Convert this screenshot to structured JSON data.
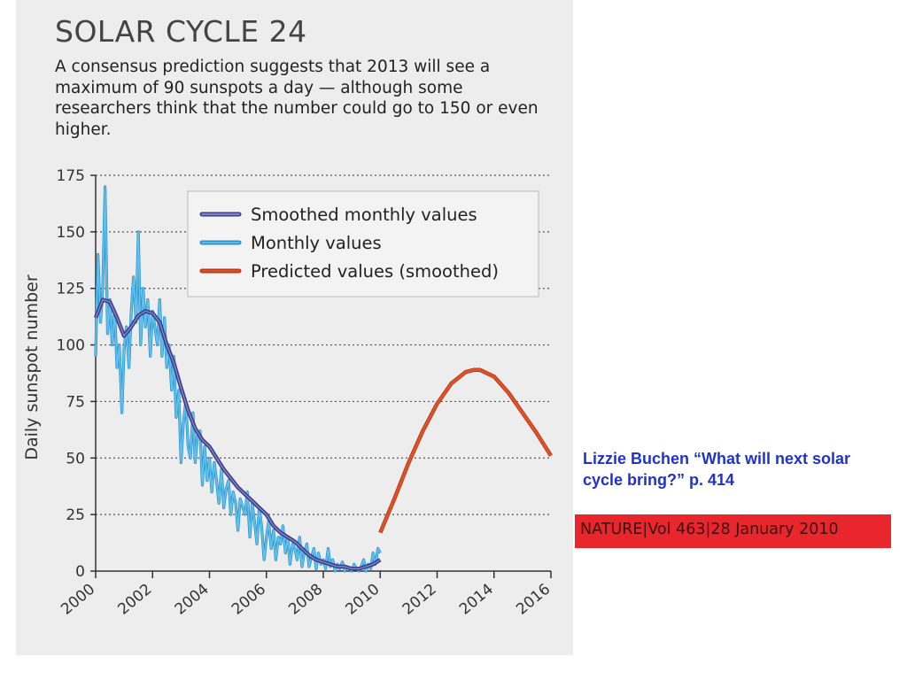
{
  "figure": {
    "title": "SOLAR CYCLE 24",
    "subtitle": "A consensus prediction suggests that 2013 will see a maximum of 90 sunspots a day — although some researchers think that the number could go to 150 or even higher."
  },
  "credit": "Lizzie Buchen “What will next solar cycle bring?” p. 414",
  "citation": "NATURE|Vol 463|28 January 2010",
  "colors": {
    "panel_background": "#ededed",
    "smoothed": "#3c3f8a",
    "monthly": "#5cc1ee",
    "predicted": "#e0522a",
    "credit_text": "#1f33c7",
    "citation_background": "#e8262b"
  },
  "chart_data": {
    "type": "line",
    "ylabel": "Daily sunspot number",
    "xlabel": "",
    "xlim": [
      2000,
      2016
    ],
    "ylim": [
      0,
      175
    ],
    "yticks": [
      0,
      25,
      50,
      75,
      100,
      125,
      150,
      175
    ],
    "xticks": [
      "2000",
      "2002",
      "2004",
      "2006",
      "2008",
      "2010",
      "2012",
      "2014",
      "2016"
    ],
    "grid": "horizontal dotted",
    "legend_position": "top-right",
    "series": [
      {
        "name": "Smoothed monthly values",
        "color": "#3c3f8a",
        "x": [
          2000.0,
          2000.25,
          2000.5,
          2000.75,
          2001.0,
          2001.25,
          2001.5,
          2001.75,
          2002.0,
          2002.25,
          2002.5,
          2002.75,
          2003.0,
          2003.25,
          2003.5,
          2003.75,
          2004.0,
          2004.25,
          2004.5,
          2004.75,
          2005.0,
          2005.25,
          2005.5,
          2005.75,
          2006.0,
          2006.25,
          2006.5,
          2006.75,
          2007.0,
          2007.25,
          2007.5,
          2007.75,
          2008.0,
          2008.25,
          2008.5,
          2008.75,
          2009.0,
          2009.25,
          2009.5,
          2009.75,
          2010.0
        ],
        "y": [
          112,
          120,
          119,
          112,
          104,
          108,
          113,
          115,
          114,
          110,
          100,
          92,
          81,
          71,
          63,
          58,
          55,
          50,
          45,
          41,
          37,
          34,
          31,
          28,
          25,
          20,
          17,
          15,
          13,
          10,
          7,
          5,
          4,
          3,
          2,
          2,
          1,
          1,
          2,
          3,
          5
        ]
      },
      {
        "name": "Monthly values",
        "color": "#5cc1ee",
        "x": [
          2000.0,
          2000.08,
          2000.17,
          2000.25,
          2000.33,
          2000.42,
          2000.5,
          2000.58,
          2000.67,
          2000.75,
          2000.83,
          2000.92,
          2001.0,
          2001.08,
          2001.17,
          2001.25,
          2001.33,
          2001.42,
          2001.5,
          2001.58,
          2001.67,
          2001.75,
          2001.83,
          2001.92,
          2002.0,
          2002.08,
          2002.17,
          2002.25,
          2002.33,
          2002.42,
          2002.5,
          2002.58,
          2002.67,
          2002.75,
          2002.83,
          2002.92,
          2003.0,
          2003.08,
          2003.17,
          2003.25,
          2003.33,
          2003.42,
          2003.5,
          2003.58,
          2003.67,
          2003.75,
          2003.83,
          2003.92,
          2004.0,
          2004.08,
          2004.17,
          2004.25,
          2004.33,
          2004.42,
          2004.5,
          2004.58,
          2004.67,
          2004.75,
          2004.83,
          2004.92,
          2005.0,
          2005.08,
          2005.17,
          2005.25,
          2005.33,
          2005.42,
          2005.5,
          2005.58,
          2005.67,
          2005.75,
          2005.83,
          2005.92,
          2006.0,
          2006.08,
          2006.17,
          2006.25,
          2006.33,
          2006.42,
          2006.5,
          2006.58,
          2006.67,
          2006.75,
          2006.83,
          2006.92,
          2007.0,
          2007.08,
          2007.17,
          2007.25,
          2007.33,
          2007.42,
          2007.5,
          2007.58,
          2007.67,
          2007.75,
          2007.83,
          2007.92,
          2008.0,
          2008.08,
          2008.17,
          2008.25,
          2008.33,
          2008.42,
          2008.5,
          2008.58,
          2008.67,
          2008.75,
          2008.83,
          2008.92,
          2009.0,
          2009.08,
          2009.17,
          2009.25,
          2009.33,
          2009.42,
          2009.5,
          2009.58,
          2009.67,
          2009.75,
          2009.83,
          2009.92,
          2010.0
        ],
        "y": [
          95,
          140,
          110,
          125,
          170,
          105,
          120,
          100,
          115,
          90,
          100,
          70,
          98,
          108,
          90,
          115,
          130,
          110,
          150,
          100,
          125,
          108,
          120,
          95,
          115,
          108,
          100,
          120,
          95,
          112,
          90,
          100,
          80,
          95,
          68,
          80,
          48,
          65,
          75,
          55,
          50,
          70,
          48,
          60,
          62,
          38,
          55,
          40,
          50,
          35,
          48,
          40,
          30,
          45,
          28,
          36,
          40,
          25,
          35,
          30,
          18,
          32,
          28,
          25,
          35,
          15,
          30,
          22,
          12,
          28,
          20,
          5,
          15,
          22,
          10,
          18,
          5,
          15,
          12,
          20,
          8,
          15,
          3,
          12,
          10,
          5,
          15,
          2,
          8,
          12,
          2,
          6,
          10,
          1,
          8,
          3,
          5,
          1,
          10,
          2,
          5,
          0,
          3,
          1,
          4,
          0,
          2,
          1,
          0,
          3,
          1,
          0,
          2,
          5,
          0,
          3,
          1,
          8,
          3,
          10,
          8
        ]
      },
      {
        "name": "Predicted values (smoothed)",
        "color": "#e0522a",
        "x": [
          2010.0,
          2010.5,
          2011.0,
          2011.5,
          2012.0,
          2012.5,
          2013.0,
          2013.3,
          2013.5,
          2014.0,
          2014.5,
          2015.0,
          2015.5,
          2016.0
        ],
        "y": [
          17,
          32,
          48,
          62,
          74,
          83,
          88,
          89,
          89,
          86,
          79,
          70,
          61,
          51
        ]
      }
    ]
  }
}
